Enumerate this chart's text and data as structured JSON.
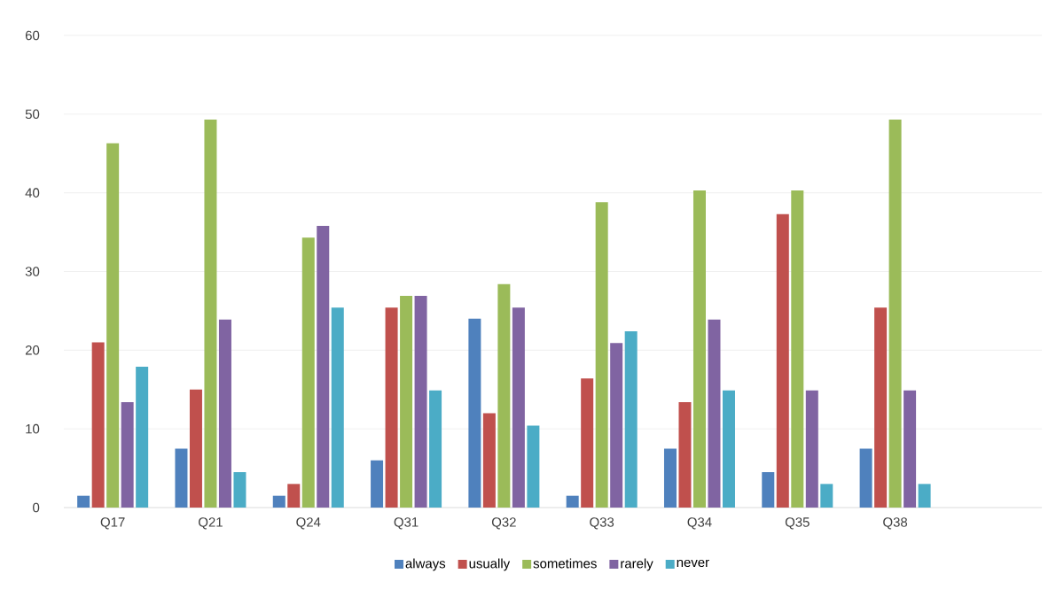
{
  "chart_data": {
    "type": "bar",
    "categories": [
      "Q17",
      "Q21",
      "Q24",
      "Q31",
      "Q32",
      "Q33",
      "Q34",
      "Q35",
      "Q38",
      null
    ],
    "series": [
      {
        "name": "always",
        "color": "#4f81bd",
        "values": [
          1.5,
          7.5,
          1.5,
          6,
          24,
          1.5,
          7.5,
          4.5,
          7.5,
          null
        ]
      },
      {
        "name": "usually",
        "color": "#c0504d",
        "values": [
          21,
          15,
          3,
          25.4,
          12,
          16.4,
          13.4,
          37.3,
          25.4,
          null
        ]
      },
      {
        "name": "sometimes",
        "color": "#9bbb59",
        "values": [
          46.3,
          49.3,
          34.3,
          26.9,
          28.4,
          38.8,
          40.3,
          40.3,
          49.3,
          null
        ]
      },
      {
        "name": "rarely",
        "color": "#8064a2",
        "values": [
          13.4,
          23.9,
          35.8,
          26.9,
          25.4,
          20.9,
          23.9,
          14.9,
          14.9,
          null
        ]
      },
      {
        "name": "never",
        "color": "#4bacc6",
        "values": [
          17.9,
          4.5,
          25.4,
          14.9,
          10.4,
          22.4,
          14.9,
          3,
          3,
          null
        ]
      }
    ],
    "ylim": [
      0,
      60
    ],
    "yticks": [
      0,
      10,
      20,
      30,
      40,
      50,
      60
    ],
    "grid": "y",
    "legend": "bottom"
  }
}
